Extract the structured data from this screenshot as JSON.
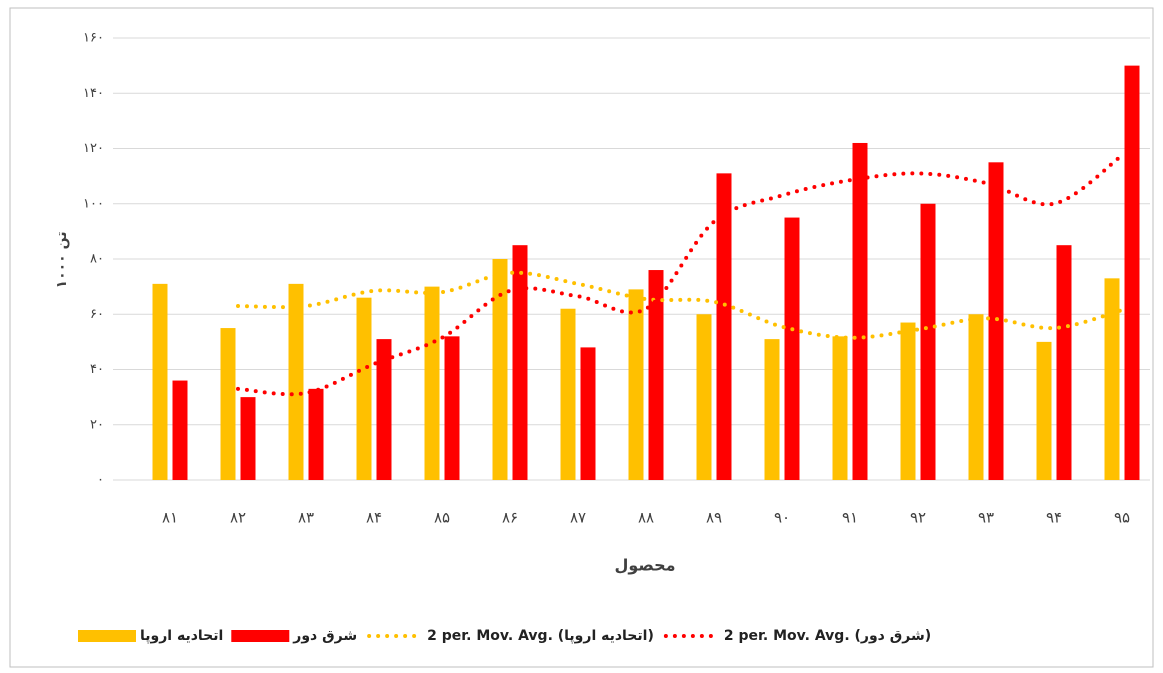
{
  "chart_data": {
    "type": "bar",
    "x_label": "محصول",
    "y_label": "۱۰۰۰ تن",
    "categories": [
      "۸۱",
      "۸۲",
      "۸۳",
      "۸۴",
      "۸۵",
      "۸۶",
      "۸۷",
      "۸۸",
      "۸۹",
      "۹۰",
      "۹۱",
      "۹۲",
      "۹۳",
      "۹۴",
      "۹۵"
    ],
    "series": [
      {
        "name": "اتحادیه اروپا",
        "color": "#ffc000",
        "values": [
          71,
          55,
          71,
          66,
          70,
          80,
          62,
          69,
          60,
          51,
          52,
          57,
          60,
          50,
          73
        ]
      },
      {
        "name": "شرق دور",
        "color": "#ff0000",
        "values": [
          36,
          30,
          33,
          51,
          52,
          85,
          48,
          76,
          111,
          95,
          122,
          100,
          115,
          85,
          150
        ]
      }
    ],
    "trendlines": [
      {
        "name": "2 per. Mov. Avg. (اتحادیه اروپا)",
        "color": "#ffc000",
        "values": [
          null,
          63,
          63,
          68.5,
          68,
          75,
          71,
          65.5,
          64.5,
          55.5,
          51.5,
          54.5,
          58.5,
          55,
          61.5
        ]
      },
      {
        "name": "2 per. Mov. Avg. (شرق دور)",
        "color": "#ff0000",
        "values": [
          null,
          33,
          31.5,
          42,
          51.5,
          68.5,
          66.5,
          62,
          93.5,
          103,
          108.5,
          111,
          107.5,
          100,
          117.5
        ]
      }
    ],
    "ylim": [
      0,
      160
    ],
    "yticks": [
      {
        "value": 0,
        "label": "۰"
      },
      {
        "value": 20,
        "label": "۲۰"
      },
      {
        "value": 40,
        "label": "۴۰"
      },
      {
        "value": 60,
        "label": "۶۰"
      },
      {
        "value": 80,
        "label": "۸۰"
      },
      {
        "value": 100,
        "label": "۱۰۰"
      },
      {
        "value": 120,
        "label": "۱۲۰"
      },
      {
        "value": 140,
        "label": "۱۴۰"
      },
      {
        "value": 160,
        "label": "۱۶۰"
      }
    ],
    "grid": true
  }
}
